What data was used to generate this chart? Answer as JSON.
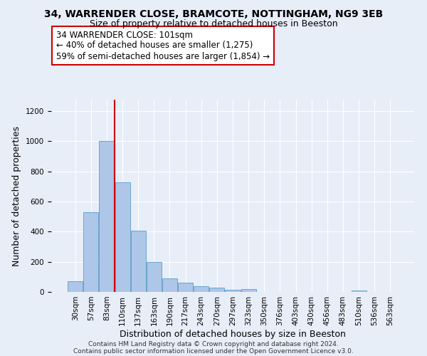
{
  "title": "34, WARRENDER CLOSE, BRAMCOTE, NOTTINGHAM, NG9 3EB",
  "subtitle": "Size of property relative to detached houses in Beeston",
  "xlabel": "Distribution of detached houses by size in Beeston",
  "ylabel": "Number of detached properties",
  "bar_labels": [
    "30sqm",
    "57sqm",
    "83sqm",
    "110sqm",
    "137sqm",
    "163sqm",
    "190sqm",
    "217sqm",
    "243sqm",
    "270sqm",
    "297sqm",
    "323sqm",
    "350sqm",
    "376sqm",
    "403sqm",
    "430sqm",
    "456sqm",
    "483sqm",
    "510sqm",
    "536sqm",
    "563sqm"
  ],
  "bar_values": [
    70,
    530,
    1000,
    725,
    408,
    197,
    90,
    60,
    38,
    30,
    14,
    18,
    0,
    0,
    0,
    0,
    0,
    0,
    10,
    0,
    0
  ],
  "bar_color": "#aec6e8",
  "bar_edge_color": "#5a9ec8",
  "vline_x_index": 3,
  "vline_color": "#cc0000",
  "annotation_line1": "34 WARRENDER CLOSE: 101sqm",
  "annotation_line2": "← 40% of detached houses are smaller (1,275)",
  "annotation_line3": "59% of semi-detached houses are larger (1,854) →",
  "annotation_box_color": "#ffffff",
  "annotation_box_edge": "#cc0000",
  "ylim": [
    0,
    1275
  ],
  "yticks": [
    0,
    200,
    400,
    600,
    800,
    1000,
    1200
  ],
  "bg_color": "#e8eef8",
  "plot_bg_color": "#e8eef8",
  "footer_line1": "Contains HM Land Registry data © Crown copyright and database right 2024.",
  "footer_line2": "Contains public sector information licensed under the Open Government Licence v3.0.",
  "title_fontsize": 10,
  "subtitle_fontsize": 9,
  "axis_label_fontsize": 9,
  "tick_fontsize": 7.5,
  "annotation_fontsize": 8.5,
  "footer_fontsize": 6.5
}
